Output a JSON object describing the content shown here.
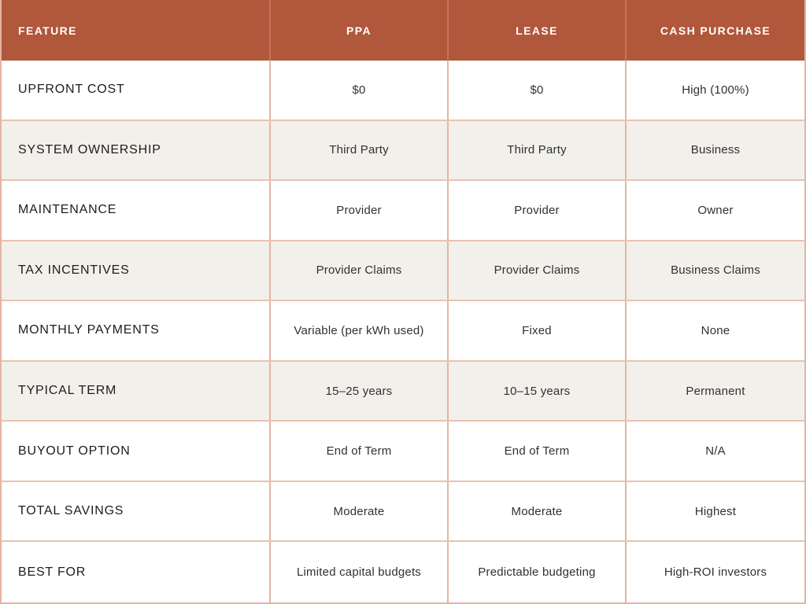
{
  "chart_data": {
    "type": "table",
    "columns": [
      "FEATURE",
      "PPA",
      "LEASE",
      "CASH PURCHASE"
    ],
    "rows": [
      {
        "feature": "UPFRONT COST",
        "values": [
          "$0",
          "$0",
          "High (100%)"
        ]
      },
      {
        "feature": "SYSTEM OWNERSHIP",
        "values": [
          "Third Party",
          "Third Party",
          "Business"
        ]
      },
      {
        "feature": "MAINTENANCE",
        "values": [
          "Provider",
          "Provider",
          "Owner"
        ]
      },
      {
        "feature": "TAX INCENTIVES",
        "values": [
          "Provider Claims",
          "Provider Claims",
          "Business Claims"
        ]
      },
      {
        "feature": "MONTHLY PAYMENTS",
        "values": [
          "Variable (per kWh used)",
          "Fixed",
          "None"
        ]
      },
      {
        "feature": "TYPICAL TERM",
        "values": [
          "15–25 years",
          "10–15 years",
          "Permanent"
        ]
      },
      {
        "feature": "BUYOUT OPTION",
        "values": [
          "End of Term",
          "End of Term",
          "N/A"
        ]
      },
      {
        "feature": "TOTAL SAVINGS",
        "values": [
          "Moderate",
          "Moderate",
          "Highest"
        ]
      },
      {
        "feature": "BEST FOR",
        "values": [
          "Limited capital budgets",
          "Predictable budgeting",
          "High-ROI investors"
        ]
      }
    ],
    "layout": {
      "shaded_row_indexes": [
        1,
        3,
        5
      ],
      "legend": "none",
      "grid": "full-borders"
    }
  },
  "colors": {
    "header_bg": "#B1573B",
    "header_text": "#FFFFFF",
    "header_divider": "#C3745B",
    "border": "#E4B5A2",
    "row_bg": "#FFFFFF",
    "row_alt_bg": "#F2F0EB",
    "feature_text": "#1D1D1D",
    "value_text": "#313131"
  }
}
